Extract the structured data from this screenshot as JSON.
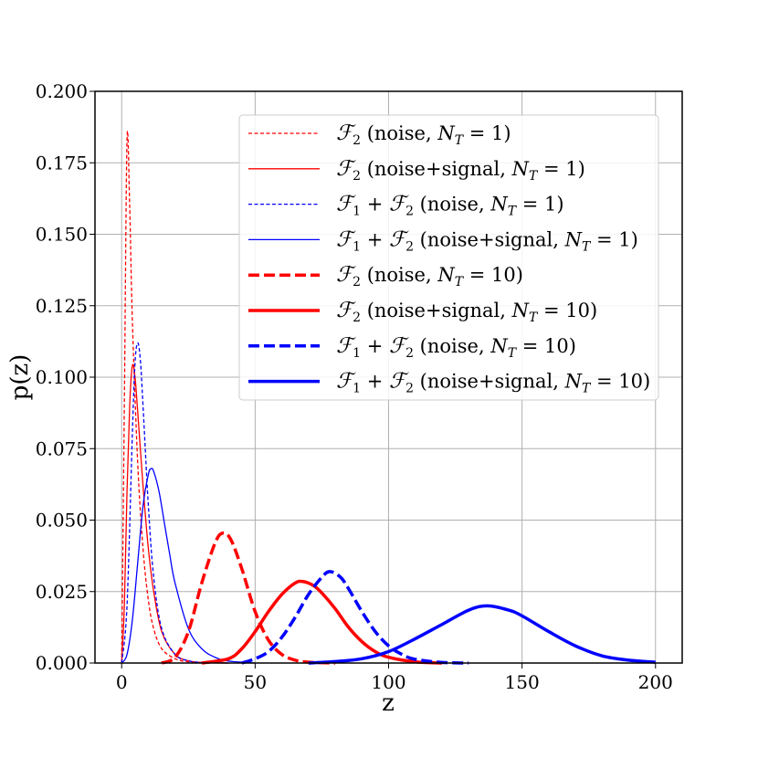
{
  "chart_data": {
    "type": "line",
    "xlabel": "z",
    "ylabel": "p(z)",
    "xlim": [
      -10,
      210
    ],
    "ylim": [
      0,
      0.2
    ],
    "xticks": [
      0,
      50,
      100,
      150,
      200
    ],
    "yticks": [
      0.0,
      0.025,
      0.05,
      0.075,
      0.1,
      0.125,
      0.15,
      0.175,
      0.2
    ],
    "grid": true,
    "legend_position": "top-right",
    "colors": {
      "red": "#ff0000",
      "blue": "#0000ff"
    },
    "series": [
      {
        "name": "F2 (noise, N_T = 1)",
        "color": "#ff0000",
        "style": "dashed",
        "width": "thin",
        "x": [
          0,
          1,
          2,
          3,
          4,
          6,
          8,
          10,
          12,
          15,
          20,
          25,
          30,
          40
        ],
        "y": [
          0,
          0.09,
          0.183,
          0.16,
          0.12,
          0.07,
          0.04,
          0.022,
          0.012,
          0.005,
          0.0015,
          0.0004,
          0.0001,
          0
        ]
      },
      {
        "name": "F2 (noise+signal, N_T = 1)",
        "color": "#ff0000",
        "style": "solid",
        "width": "thin",
        "x": [
          0,
          1,
          2,
          3,
          4,
          5,
          6,
          8,
          10,
          12,
          15,
          20,
          25,
          30,
          40
        ],
        "y": [
          0,
          0.02,
          0.06,
          0.09,
          0.104,
          0.1,
          0.088,
          0.062,
          0.04,
          0.025,
          0.011,
          0.003,
          0.0008,
          0.0002,
          0
        ]
      },
      {
        "name": "F1 + F2 (noise, N_T = 1)",
        "color": "#0000ff",
        "style": "dashed",
        "width": "thin",
        "x": [
          0,
          2,
          4,
          5,
          6,
          7,
          8,
          10,
          12,
          15,
          20,
          25,
          30,
          40
        ],
        "y": [
          0,
          0.02,
          0.08,
          0.105,
          0.112,
          0.106,
          0.09,
          0.055,
          0.03,
          0.012,
          0.003,
          0.0008,
          0.0002,
          0
        ]
      },
      {
        "name": "F1 + F2 (noise+signal, N_T = 1)",
        "color": "#0000ff",
        "style": "solid",
        "width": "thin",
        "x": [
          0,
          2,
          4,
          6,
          8,
          10,
          11,
          12,
          14,
          16,
          18,
          20,
          25,
          30,
          35,
          40,
          50
        ],
        "y": [
          0,
          0.003,
          0.015,
          0.035,
          0.055,
          0.066,
          0.068,
          0.067,
          0.06,
          0.049,
          0.038,
          0.028,
          0.012,
          0.005,
          0.002,
          0.0007,
          0
        ]
      },
      {
        "name": "F2 (noise, N_T = 10)",
        "color": "#ff0000",
        "style": "dashed",
        "width": "thick",
        "x": [
          15,
          20,
          25,
          30,
          35,
          38,
          41,
          45,
          50,
          55,
          60,
          65,
          70,
          80
        ],
        "y": [
          0,
          0.002,
          0.011,
          0.028,
          0.042,
          0.0455,
          0.043,
          0.033,
          0.018,
          0.008,
          0.003,
          0.001,
          0.0003,
          0
        ]
      },
      {
        "name": "F2 (noise+signal, N_T = 10)",
        "color": "#ff0000",
        "style": "solid",
        "width": "thick",
        "x": [
          30,
          40,
          45,
          50,
          55,
          60,
          65,
          68,
          72,
          75,
          80,
          85,
          90,
          95,
          100,
          110,
          120
        ],
        "y": [
          0,
          0.0015,
          0.005,
          0.011,
          0.018,
          0.024,
          0.028,
          0.0285,
          0.027,
          0.0245,
          0.019,
          0.0125,
          0.0075,
          0.004,
          0.002,
          0.0004,
          0
        ]
      },
      {
        "name": "F1 + F2 (noise, N_T = 10)",
        "color": "#0000ff",
        "style": "dashed",
        "width": "thick",
        "x": [
          45,
          50,
          55,
          60,
          65,
          70,
          75,
          78,
          82,
          85,
          90,
          95,
          100,
          105,
          110,
          120,
          130
        ],
        "y": [
          0,
          0.0015,
          0.004,
          0.009,
          0.016,
          0.024,
          0.03,
          0.032,
          0.03,
          0.026,
          0.018,
          0.011,
          0.006,
          0.003,
          0.0013,
          0.0002,
          0
        ]
      },
      {
        "name": "F1 + F2 (noise+signal, N_T = 10)",
        "color": "#0000ff",
        "style": "solid",
        "width": "thick",
        "x": [
          70,
          80,
          90,
          100,
          110,
          120,
          130,
          137,
          145,
          150,
          160,
          170,
          180,
          190,
          200
        ],
        "y": [
          0,
          0.0005,
          0.0015,
          0.004,
          0.0085,
          0.0135,
          0.0185,
          0.02,
          0.0185,
          0.0165,
          0.011,
          0.006,
          0.0025,
          0.001,
          0.0003
        ]
      }
    ]
  }
}
